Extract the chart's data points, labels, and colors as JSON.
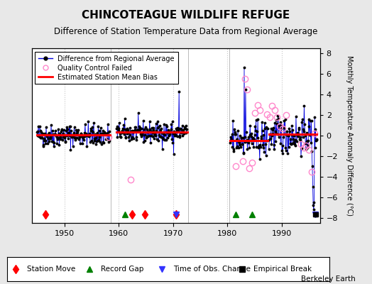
{
  "title": "CHINCOTEAGUE WILDLIFE REFUGE",
  "subtitle": "Difference of Station Temperature Data from Regional Average",
  "ylabel": "Monthly Temperature Anomaly Difference (°C)",
  "xlim": [
    1944.0,
    1997.0
  ],
  "ylim": [
    -8.5,
    8.5
  ],
  "yticks": [
    -8,
    -6,
    -4,
    -2,
    0,
    2,
    4,
    6,
    8
  ],
  "xticks": [
    1950,
    1960,
    1970,
    1980,
    1990
  ],
  "background_color": "#e8e8e8",
  "plot_bg_color": "#ffffff",
  "grid_color": "#c8c8c8",
  "title_fontsize": 11,
  "subtitle_fontsize": 8.5,
  "tick_fontsize": 8,
  "ylabel_fontsize": 7,
  "berkeley_earth_text": "Berkeley Earth",
  "segment1_xrange": [
    1945.0,
    1958.4
  ],
  "segment1_bias": 0.05,
  "segment2_xrange": [
    1959.6,
    1972.6
  ],
  "segment2_bias": 0.35,
  "segment3_xrange": [
    1980.5,
    1987.4
  ],
  "segment3_bias": -0.45,
  "segment4_xrange": [
    1987.6,
    1996.4
  ],
  "segment4_bias": 0.12,
  "station_moves": [
    1946.5,
    1962.5,
    1964.8,
    1970.5
  ],
  "record_gaps": [
    1961.2,
    1981.5,
    1984.5
  ],
  "time_obs_changes": [
    1970.5,
    1996.1
  ],
  "empirical_breaks": [
    1996.15,
    1996.25
  ]
}
